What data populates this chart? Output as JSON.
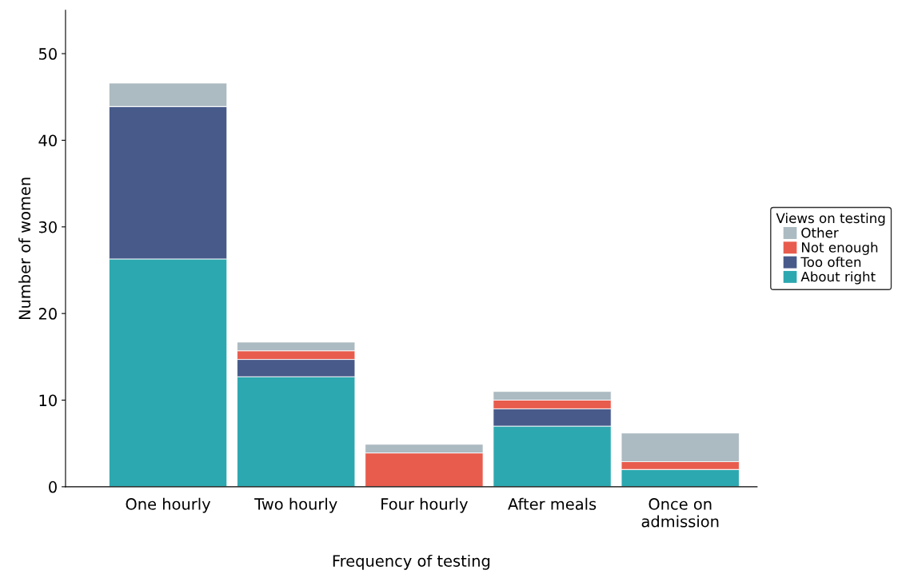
{
  "chart_data": {
    "type": "bar",
    "stacked": true,
    "xlabel": "Frequency of testing",
    "ylabel": "Number of women",
    "legend_title": "Views on testing",
    "categories": [
      "One hourly",
      "Two hourly",
      "Four hourly",
      "After meals",
      "Once on\nadmission"
    ],
    "series": [
      {
        "name": "About right",
        "color": "#2ca8b0",
        "values": [
          26.3,
          12.7,
          0,
          7,
          2
        ]
      },
      {
        "name": "Too often",
        "color": "#475a8a",
        "values": [
          17.6,
          2,
          0,
          2,
          0
        ]
      },
      {
        "name": "Not enough",
        "color": "#e85c4d",
        "values": [
          0,
          1,
          3.9,
          1,
          0.9
        ]
      },
      {
        "name": "Other",
        "color": "#acbac1",
        "values": [
          2.7,
          1,
          1,
          1,
          3.3
        ]
      }
    ],
    "ylim": [
      0,
      55
    ],
    "yticks": [
      0,
      10,
      20,
      30,
      40,
      50
    ],
    "grid": false,
    "legend": "right"
  }
}
